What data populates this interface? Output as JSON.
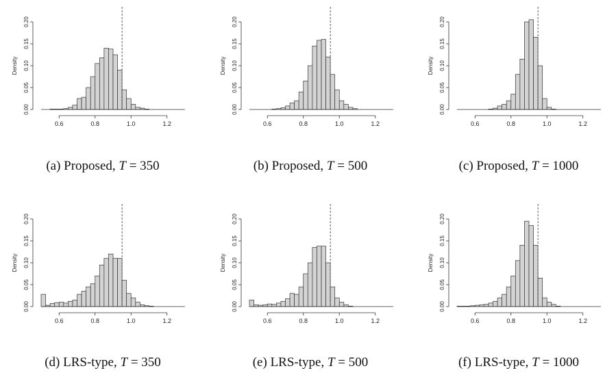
{
  "chart_data": [
    {
      "type": "bar",
      "caption": {
        "prefix": "(a) Proposed, ",
        "var": "T",
        "suffix": " = 350"
      },
      "ylabel": "Density",
      "xlim": [
        0.5,
        1.3
      ],
      "ylim": [
        0,
        0.2
      ],
      "xticks": [
        "0.6",
        "0.8",
        "1.0",
        "1.2"
      ],
      "yticks": [
        "0.00",
        "0.05",
        "0.10",
        "0.15",
        "0.20"
      ],
      "bin_start": 0.5,
      "bin_width": 0.025,
      "values": [
        0,
        0,
        0.001,
        0.001,
        0.001,
        0.002,
        0.005,
        0.01,
        0.025,
        0.028,
        0.05,
        0.075,
        0.105,
        0.118,
        0.14,
        0.138,
        0.125,
        0.09,
        0.045,
        0.025,
        0.012,
        0.005,
        0.003,
        0.001
      ],
      "reference_line": 0.95
    },
    {
      "type": "bar",
      "caption": {
        "prefix": "(b) Proposed, ",
        "var": "T",
        "suffix": " = 500"
      },
      "ylabel": "Density",
      "xlim": [
        0.5,
        1.3
      ],
      "ylim": [
        0,
        0.2
      ],
      "xticks": [
        "0.6",
        "0.8",
        "1.0",
        "1.2"
      ],
      "yticks": [
        "0.00",
        "0.05",
        "0.10",
        "0.15",
        "0.20"
      ],
      "bin_start": 0.5,
      "bin_width": 0.025,
      "values": [
        0,
        0,
        0,
        0,
        0,
        0.001,
        0.002,
        0.004,
        0.008,
        0.015,
        0.02,
        0.04,
        0.065,
        0.1,
        0.145,
        0.158,
        0.16,
        0.12,
        0.08,
        0.045,
        0.02,
        0.012,
        0.005,
        0.002
      ],
      "reference_line": 0.95
    },
    {
      "type": "bar",
      "caption": {
        "prefix": "(c) Proposed, ",
        "var": "T",
        "suffix": " = 1000"
      },
      "ylabel": "Density",
      "xlim": [
        0.5,
        1.3
      ],
      "ylim": [
        0,
        0.2
      ],
      "xticks": [
        "0.6",
        "0.8",
        "1.0",
        "1.2"
      ],
      "yticks": [
        "0.00",
        "0.05",
        "0.10",
        "0.15",
        "0.20"
      ],
      "bin_start": 0.5,
      "bin_width": 0.025,
      "values": [
        0,
        0,
        0,
        0,
        0,
        0,
        0,
        0.001,
        0.003,
        0.008,
        0.012,
        0.02,
        0.035,
        0.08,
        0.115,
        0.2,
        0.205,
        0.165,
        0.1,
        0.025,
        0.005,
        0.001,
        0,
        0
      ],
      "reference_line": 0.95
    },
    {
      "type": "bar",
      "caption": {
        "prefix": "(d) LRS-type, ",
        "var": "T",
        "suffix": " = 350"
      },
      "ylabel": "Density",
      "xlim": [
        0.5,
        1.3
      ],
      "ylim": [
        0,
        0.2
      ],
      "xticks": [
        "0.6",
        "0.8",
        "1.0",
        "1.2"
      ],
      "yticks": [
        "0.00",
        "0.05",
        "0.10",
        "0.15",
        "0.20"
      ],
      "bin_start": 0.5,
      "bin_width": 0.025,
      "values": [
        0.028,
        0.003,
        0.007,
        0.009,
        0.01,
        0.008,
        0.012,
        0.015,
        0.028,
        0.035,
        0.045,
        0.052,
        0.07,
        0.095,
        0.11,
        0.12,
        0.11,
        0.11,
        0.06,
        0.03,
        0.02,
        0.01,
        0.004,
        0.002,
        0.001
      ],
      "reference_line": 0.95
    },
    {
      "type": "bar",
      "caption": {
        "prefix": "(e) LRS-type, ",
        "var": "T",
        "suffix": " = 500"
      },
      "ylabel": "Density",
      "xlim": [
        0.5,
        1.3
      ],
      "ylim": [
        0,
        0.2
      ],
      "xticks": [
        "0.6",
        "0.8",
        "1.0",
        "1.2"
      ],
      "yticks": [
        "0.00",
        "0.05",
        "0.10",
        "0.15",
        "0.20"
      ],
      "bin_start": 0.5,
      "bin_width": 0.025,
      "values": [
        0.015,
        0.004,
        0.003,
        0.004,
        0.006,
        0.005,
        0.008,
        0.012,
        0.018,
        0.03,
        0.028,
        0.045,
        0.075,
        0.1,
        0.135,
        0.138,
        0.138,
        0.1,
        0.045,
        0.02,
        0.01,
        0.004,
        0.001
      ],
      "reference_line": 0.95
    },
    {
      "type": "bar",
      "caption": {
        "prefix": "(f) LRS-type, ",
        "var": "T",
        "suffix": " = 1000"
      },
      "ylabel": "Density",
      "xlim": [
        0.5,
        1.3
      ],
      "ylim": [
        0,
        0.2
      ],
      "xticks": [
        "0.6",
        "0.8",
        "1.0",
        "1.2"
      ],
      "yticks": [
        "0.00",
        "0.05",
        "0.10",
        "0.15",
        "0.20"
      ],
      "bin_start": 0.5,
      "bin_width": 0.025,
      "values": [
        0.001,
        0.001,
        0.001,
        0.002,
        0.003,
        0.004,
        0.005,
        0.008,
        0.012,
        0.02,
        0.028,
        0.045,
        0.07,
        0.105,
        0.14,
        0.195,
        0.185,
        0.14,
        0.065,
        0.02,
        0.01,
        0.005,
        0.001
      ],
      "reference_line": 0.95
    }
  ]
}
